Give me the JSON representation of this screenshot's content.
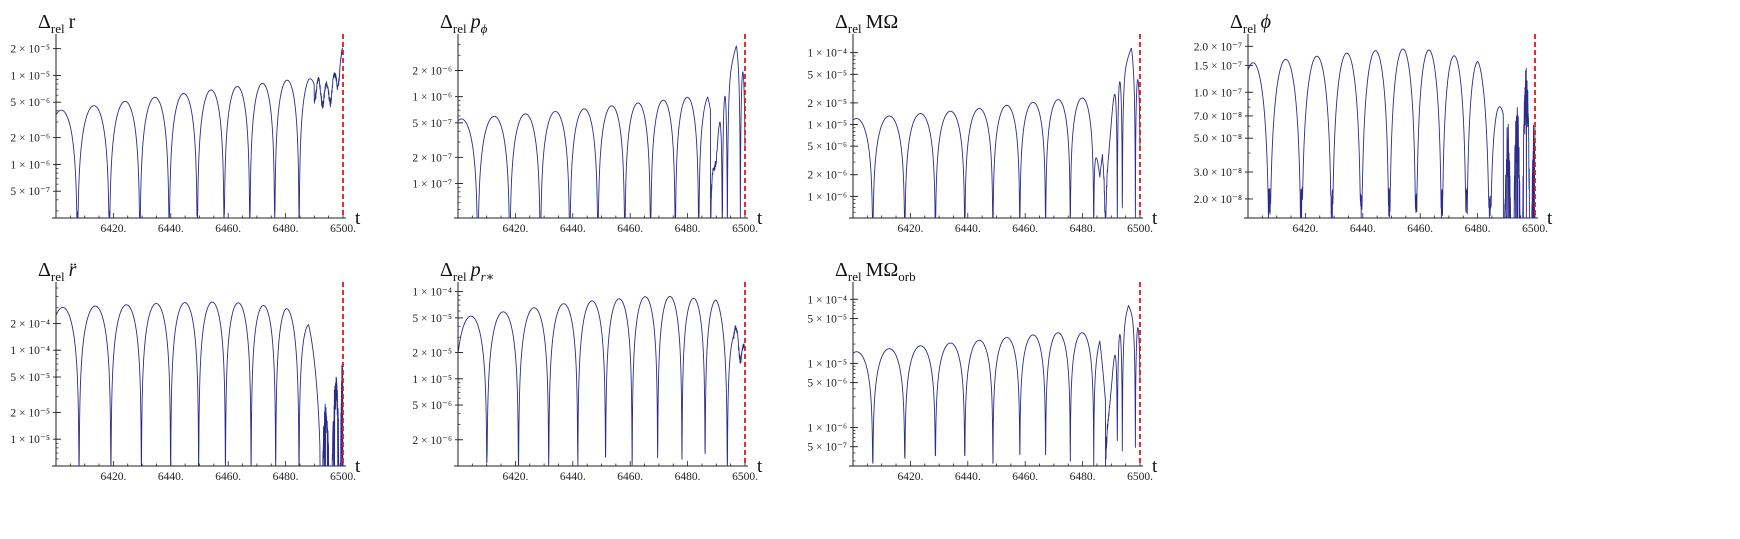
{
  "colors": {
    "series": "#2b2c8c",
    "marker": "#e01919",
    "axis": "#222222"
  },
  "chart_data": [
    {
      "type": "line",
      "title_main": "Δ",
      "title_sub": "rel",
      "title_var": "r",
      "title_var_style": "normal",
      "title_var_sub": "",
      "xlabel": "t",
      "xlim": [
        6400,
        6500
      ],
      "yscale": "log",
      "ylim": [
        2.5e-07,
        2.5e-05
      ],
      "xticks": [
        {
          "v": 6420,
          "label": "6420."
        },
        {
          "v": 6440,
          "label": "6440."
        },
        {
          "v": 6460,
          "label": "6460."
        },
        {
          "v": 6480,
          "label": "6480."
        },
        {
          "v": 6500,
          "label": "6500."
        }
      ],
      "yticks": [
        {
          "v": 5e-07,
          "label": "5 × 10⁻⁷"
        },
        {
          "v": 1e-06,
          "label": "1 × 10⁻⁶"
        },
        {
          "v": 2e-06,
          "label": "2 × 10⁻⁶"
        },
        {
          "v": 5e-06,
          "label": "5 × 10⁻⁶"
        },
        {
          "v": 1e-05,
          "label": "1 × 10⁻⁵"
        },
        {
          "v": 2e-05,
          "label": "2 × 10⁻⁵"
        }
      ],
      "marker_x": 6500,
      "envelope": [
        [
          6400,
          4e-06
        ],
        [
          6440,
          6e-06
        ],
        [
          6470,
          8e-06
        ],
        [
          6488,
          9.5e-06
        ],
        [
          6494,
          7e-06
        ],
        [
          6497,
          9e-06
        ],
        [
          6500,
          1.8e-05
        ]
      ],
      "freq": [
        [
          6400,
          0.085
        ],
        [
          6440,
          0.1
        ],
        [
          6470,
          0.115
        ],
        [
          6490,
          0.12
        ]
      ],
      "dip": 3e-07,
      "start_phase": 0.35,
      "chaos_from": 6490,
      "chaos_kind": "smooth"
    },
    {
      "type": "line",
      "title_main": "Δ",
      "title_sub": "rel",
      "title_var": "p",
      "title_var_style": "italic",
      "title_var_sub": "ϕ",
      "xlabel": "t",
      "xlim": [
        6400,
        6500
      ],
      "yscale": "log",
      "ylim": [
        4e-08,
        4.5e-06
      ],
      "xticks": [
        {
          "v": 6420,
          "label": "6420."
        },
        {
          "v": 6440,
          "label": "6440."
        },
        {
          "v": 6460,
          "label": "6460."
        },
        {
          "v": 6480,
          "label": "6480."
        },
        {
          "v": 6500,
          "label": "6500."
        }
      ],
      "yticks": [
        {
          "v": 1e-07,
          "label": "1 × 10⁻⁷"
        },
        {
          "v": 2e-07,
          "label": "2 × 10⁻⁷"
        },
        {
          "v": 5e-07,
          "label": "5 × 10⁻⁷"
        },
        {
          "v": 1e-06,
          "label": "1 × 10⁻⁶"
        },
        {
          "v": 2e-06,
          "label": "2 × 10⁻⁶"
        }
      ],
      "marker_x": 6500,
      "envelope": [
        [
          6400,
          5.5e-07
        ],
        [
          6440,
          7e-07
        ],
        [
          6470,
          9e-07
        ],
        [
          6487,
          1.05e-06
        ],
        [
          6490,
          3e-07
        ],
        [
          6494,
          1.5e-06
        ],
        [
          6497,
          4e-06
        ],
        [
          6500,
          1.5e-06
        ]
      ],
      "freq": [
        [
          6400,
          0.085
        ],
        [
          6440,
          0.1
        ],
        [
          6470,
          0.115
        ],
        [
          6490,
          0.13
        ]
      ],
      "dip": 3e-08,
      "start_phase": 0.4,
      "chaos_from": 6488,
      "chaos_kind": "spiky"
    },
    {
      "type": "line",
      "title_main": "Δ",
      "title_sub": "rel",
      "title_var": "MΩ",
      "title_var_style": "normal",
      "title_var_sub": "",
      "xlabel": "t",
      "xlim": [
        6400,
        6500
      ],
      "yscale": "log",
      "ylim": [
        5e-07,
        0.00015
      ],
      "xticks": [
        {
          "v": 6420,
          "label": "6420."
        },
        {
          "v": 6440,
          "label": "6440."
        },
        {
          "v": 6460,
          "label": "6460."
        },
        {
          "v": 6480,
          "label": "6480."
        },
        {
          "v": 6500,
          "label": "6500."
        }
      ],
      "yticks": [
        {
          "v": 1e-06,
          "label": "1 × 10⁻⁶"
        },
        {
          "v": 2e-06,
          "label": "2 × 10⁻⁶"
        },
        {
          "v": 5e-06,
          "label": "5 × 10⁻⁶"
        },
        {
          "v": 1e-05,
          "label": "1 × 10⁻⁵"
        },
        {
          "v": 2e-05,
          "label": "2 × 10⁻⁵"
        },
        {
          "v": 5e-05,
          "label": "5 × 10⁻⁵"
        },
        {
          "v": 0.0001,
          "label": "1 × 10⁻⁴"
        }
      ],
      "marker_x": 6500,
      "envelope": [
        [
          6400,
          1.2e-05
        ],
        [
          6440,
          1.6e-05
        ],
        [
          6470,
          2.2e-05
        ],
        [
          6484,
          2.4e-05
        ],
        [
          6486,
          2.5e-06
        ],
        [
          6490,
          2e-05
        ],
        [
          6494,
          5e-05
        ],
        [
          6497,
          0.00012
        ],
        [
          6500,
          3e-05
        ]
      ],
      "freq": [
        [
          6400,
          0.085
        ],
        [
          6440,
          0.1
        ],
        [
          6470,
          0.115
        ],
        [
          6490,
          0.13
        ]
      ],
      "dip": 4e-07,
      "start_phase": 0.4,
      "chaos_from": 6487,
      "chaos_kind": "spiky"
    },
    {
      "type": "line",
      "title_main": "Δ",
      "title_sub": "rel",
      "title_var": "ϕ",
      "title_var_style": "italic",
      "title_var_sub": "",
      "xlabel": "t",
      "xlim": [
        6400,
        6500
      ],
      "yscale": "log",
      "ylim": [
        1.5e-08,
        2.2e-07
      ],
      "xticks": [
        {
          "v": 6420,
          "label": "6420."
        },
        {
          "v": 6440,
          "label": "6440."
        },
        {
          "v": 6460,
          "label": "6460."
        },
        {
          "v": 6480,
          "label": "6480."
        },
        {
          "v": 6500,
          "label": "6500."
        }
      ],
      "yticks": [
        {
          "v": 2e-08,
          "label": "2.0 × 10⁻⁸"
        },
        {
          "v": 3e-08,
          "label": "3.0 × 10⁻⁸"
        },
        {
          "v": 5e-08,
          "label": "5.0 × 10⁻⁸"
        },
        {
          "v": 7e-08,
          "label": "7.0 × 10⁻⁸"
        },
        {
          "v": 1e-07,
          "label": "1.0 × 10⁻⁷"
        },
        {
          "v": 1.5e-07,
          "label": "1.5 × 10⁻⁷"
        },
        {
          "v": 2e-07,
          "label": "2.0 × 10⁻⁷"
        }
      ],
      "marker_x": 6500,
      "envelope": [
        [
          6400,
          1.55e-07
        ],
        [
          6440,
          1.85e-07
        ],
        [
          6460,
          1.95e-07
        ],
        [
          6480,
          1.6e-07
        ],
        [
          6488,
          8e-08
        ],
        [
          6492,
          6e-08
        ],
        [
          6496,
          1.3e-07
        ],
        [
          6498,
          2e-07
        ],
        [
          6500,
          8e-08
        ]
      ],
      "freq": [
        [
          6400,
          0.085
        ],
        [
          6440,
          0.1
        ],
        [
          6470,
          0.115
        ],
        [
          6490,
          0.13
        ]
      ],
      "dip": 2.4e-08,
      "dip_floor": 3.5e-08,
      "start_phase": 0.35,
      "chaos_from": 6489,
      "chaos_kind": "crash"
    },
    {
      "type": "line",
      "title_main": "Δ",
      "title_sub": "rel",
      "title_var": "r̈",
      "title_var_style": "italic",
      "title_var_sub": "",
      "xlabel": "t",
      "xlim": [
        6400,
        6500
      ],
      "yscale": "log",
      "ylim": [
        5e-06,
        0.0005
      ],
      "xticks": [
        {
          "v": 6420,
          "label": "6420."
        },
        {
          "v": 6440,
          "label": "6440."
        },
        {
          "v": 6460,
          "label": "6460."
        },
        {
          "v": 6480,
          "label": "6480."
        },
        {
          "v": 6500,
          "label": "6500."
        }
      ],
      "yticks": [
        {
          "v": 1e-05,
          "label": "1 × 10⁻⁵"
        },
        {
          "v": 2e-05,
          "label": "2 × 10⁻⁵"
        },
        {
          "v": 5e-05,
          "label": "5 × 10⁻⁵"
        },
        {
          "v": 0.0001,
          "label": "1 × 10⁻⁴"
        },
        {
          "v": 0.0002,
          "label": "2 × 10⁻⁴"
        }
      ],
      "marker_x": 6500,
      "envelope": [
        [
          6400,
          0.0003
        ],
        [
          6440,
          0.00034
        ],
        [
          6460,
          0.00035
        ],
        [
          6480,
          0.0003
        ],
        [
          6488,
          0.0002
        ],
        [
          6492,
          4e-05
        ],
        [
          6496,
          2e-05
        ],
        [
          6499,
          0.00015
        ],
        [
          6500,
          0.0002
        ]
      ],
      "freq": [
        [
          6400,
          0.085
        ],
        [
          6440,
          0.1
        ],
        [
          6470,
          0.115
        ],
        [
          6490,
          0.13
        ]
      ],
      "dip": 6e-06,
      "start_phase": 0.3,
      "chaos_from": 6492,
      "chaos_kind": "crash"
    },
    {
      "type": "line",
      "title_main": "Δ",
      "title_sub": "rel",
      "title_var": "p",
      "title_var_style": "italic",
      "title_var_sub": "r∗",
      "xlabel": "t",
      "xlim": [
        6400,
        6500
      ],
      "yscale": "log",
      "ylim": [
        1e-06,
        0.00011
      ],
      "xticks": [
        {
          "v": 6420,
          "label": "6420."
        },
        {
          "v": 6440,
          "label": "6440."
        },
        {
          "v": 6460,
          "label": "6460."
        },
        {
          "v": 6480,
          "label": "6480."
        },
        {
          "v": 6500,
          "label": "6500."
        }
      ],
      "yticks": [
        {
          "v": 2e-06,
          "label": "2 × 10⁻⁶"
        },
        {
          "v": 5e-06,
          "label": "5 × 10⁻⁶"
        },
        {
          "v": 1e-05,
          "label": "1 × 10⁻⁵"
        },
        {
          "v": 2e-05,
          "label": "2 × 10⁻⁵"
        },
        {
          "v": 5e-05,
          "label": "5 × 10⁻⁵"
        },
        {
          "v": 0.0001,
          "label": "1 × 10⁻⁴"
        }
      ],
      "marker_x": 6500,
      "envelope": [
        [
          6400,
          5e-05
        ],
        [
          6440,
          7.5e-05
        ],
        [
          6470,
          9e-05
        ],
        [
          6490,
          8e-05
        ],
        [
          6496,
          4e-05
        ],
        [
          6500,
          2e-05
        ]
      ],
      "freq": [
        [
          6400,
          0.085
        ],
        [
          6440,
          0.1
        ],
        [
          6470,
          0.115
        ],
        [
          6490,
          0.13
        ]
      ],
      "dip": 1.4e-06,
      "start_phase": 0.12,
      "chaos_from": 6496,
      "chaos_kind": "smooth"
    },
    {
      "type": "line",
      "title_main": "Δ",
      "title_sub": "rel",
      "title_var": "MΩ",
      "title_var_style": "normal",
      "title_var_sub": "orb",
      "xlabel": "t",
      "xlim": [
        6400,
        6500
      ],
      "yscale": "log",
      "ylim": [
        2.5e-07,
        0.00015
      ],
      "xticks": [
        {
          "v": 6420,
          "label": "6420."
        },
        {
          "v": 6440,
          "label": "6440."
        },
        {
          "v": 6460,
          "label": "6460."
        },
        {
          "v": 6480,
          "label": "6480."
        },
        {
          "v": 6500,
          "label": "6500."
        }
      ],
      "yticks": [
        {
          "v": 5e-07,
          "label": "5 × 10⁻⁷"
        },
        {
          "v": 1e-06,
          "label": "1 × 10⁻⁶"
        },
        {
          "v": 5e-06,
          "label": "5 × 10⁻⁶"
        },
        {
          "v": 1e-05,
          "label": "1 × 10⁻⁵"
        },
        {
          "v": 5e-05,
          "label": "5 × 10⁻⁵"
        },
        {
          "v": 0.0001,
          "label": "1 × 10⁻⁴"
        }
      ],
      "marker_x": 6500,
      "envelope": [
        [
          6400,
          1.5e-05
        ],
        [
          6440,
          2.2e-05
        ],
        [
          6470,
          3e-05
        ],
        [
          6486,
          3e-05
        ],
        [
          6488,
          2.5e-06
        ],
        [
          6492,
          2e-05
        ],
        [
          6496,
          8e-05
        ],
        [
          6500,
          3e-05
        ]
      ],
      "freq": [
        [
          6400,
          0.085
        ],
        [
          6440,
          0.1
        ],
        [
          6470,
          0.115
        ],
        [
          6490,
          0.13
        ]
      ],
      "dip": 4e-07,
      "start_phase": 0.4,
      "chaos_from": 6488,
      "chaos_kind": "spiky"
    }
  ]
}
